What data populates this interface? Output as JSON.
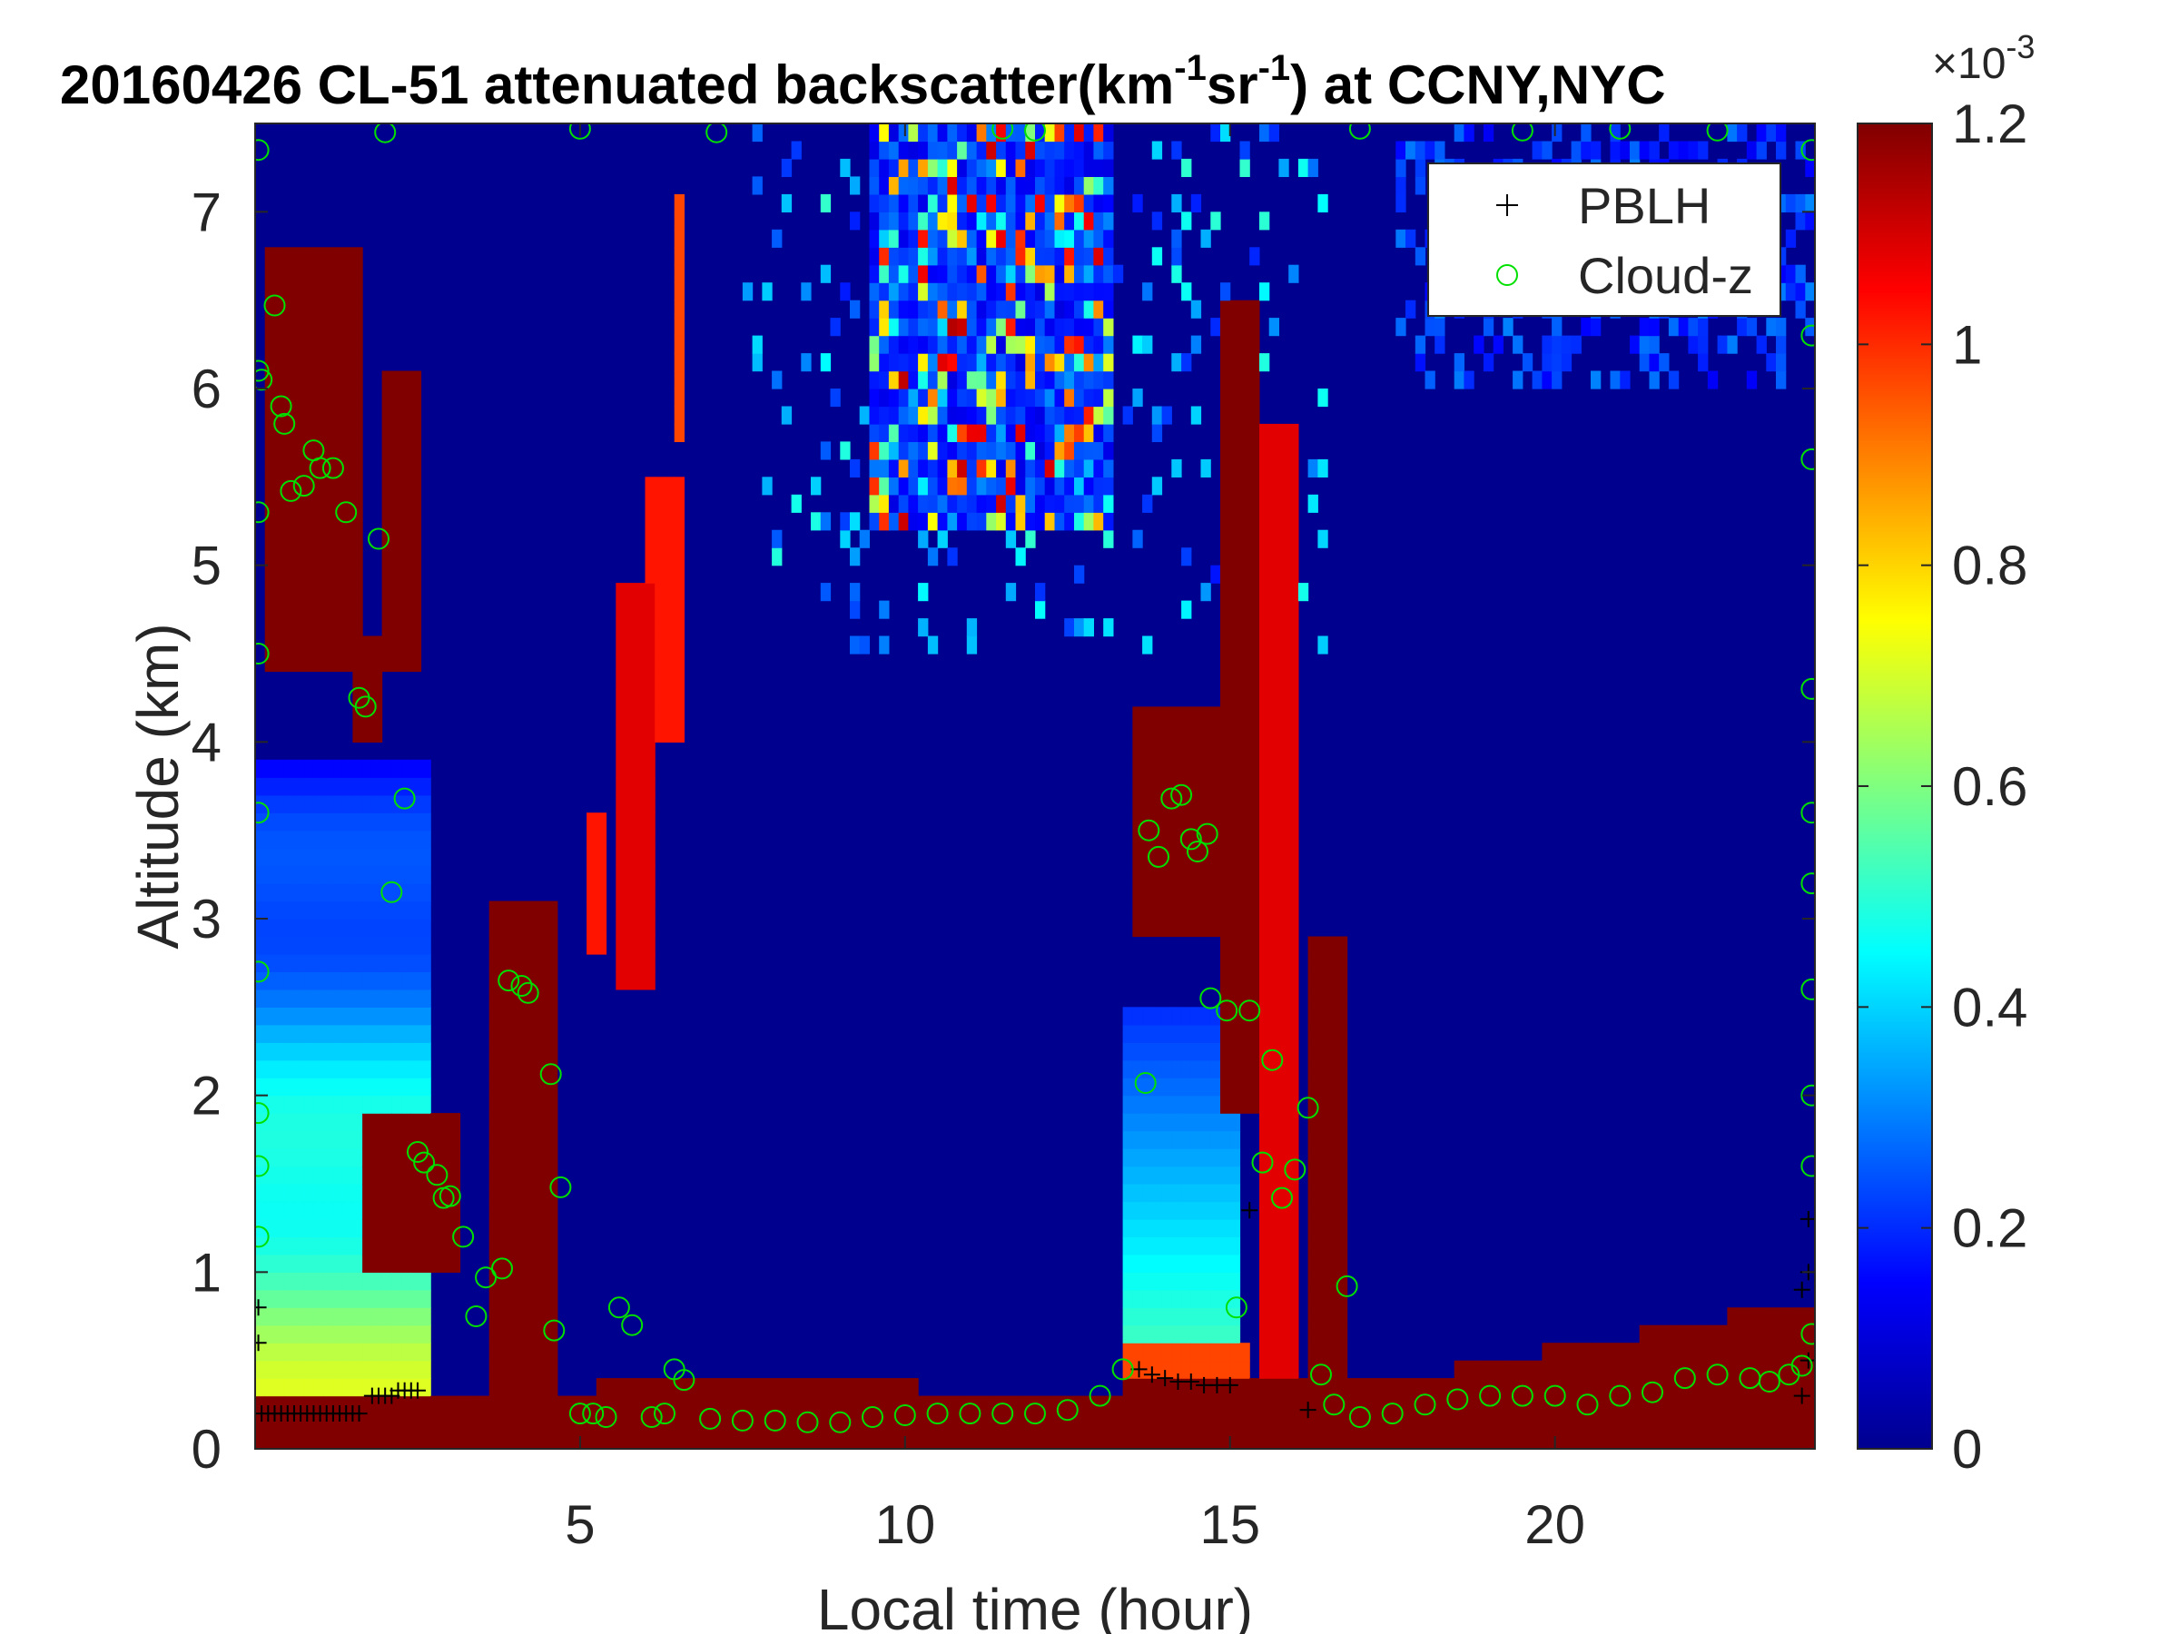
{
  "chart_data": {
    "type": "heatmap",
    "title": "20160426  CL-51 attenuated backscatter(km",
    "title_sup1": "-1",
    "title_mid": "sr",
    "title_sup2": "-1",
    "title_end": ") at CCNY,NYC",
    "xlabel": "Local time (hour)",
    "ylabel": "Altitude (km)",
    "xlim": [
      0,
      24
    ],
    "ylim": [
      0,
      7.5
    ],
    "xticks": [
      5,
      10,
      15,
      20
    ],
    "yticks": [
      0,
      1,
      2,
      3,
      4,
      5,
      6,
      7
    ],
    "colorbar": {
      "range": [
        0,
        0.0012
      ],
      "ticks": [
        0,
        0.2,
        0.4,
        0.6,
        0.8,
        1,
        1.2
      ],
      "tick_labels": [
        "0",
        "0.2",
        "0.4",
        "0.6",
        "0.8",
        "1",
        "1.2"
      ],
      "exponent_base": "10",
      "exponent_power": "-3",
      "exponent_prefix": "×",
      "colormap": "jet"
    },
    "legend": {
      "position": "top-right",
      "entries": [
        {
          "label": "PBLH",
          "marker": "+",
          "color": "#000000"
        },
        {
          "label": "Cloud-z",
          "marker": "o",
          "color": "#00e000"
        }
      ]
    },
    "series": [
      {
        "name": "PBLH",
        "marker": "+",
        "points": [
          [
            0.1,
            0.2
          ],
          [
            0.2,
            0.2
          ],
          [
            0.3,
            0.2
          ],
          [
            0.4,
            0.2
          ],
          [
            0.5,
            0.2
          ],
          [
            0.6,
            0.2
          ],
          [
            0.7,
            0.2
          ],
          [
            0.8,
            0.2
          ],
          [
            0.9,
            0.2
          ],
          [
            1.0,
            0.2
          ],
          [
            1.1,
            0.2
          ],
          [
            1.2,
            0.2
          ],
          [
            1.3,
            0.2
          ],
          [
            1.4,
            0.2
          ],
          [
            1.5,
            0.2
          ],
          [
            1.6,
            0.2
          ],
          [
            1.8,
            0.3
          ],
          [
            1.9,
            0.3
          ],
          [
            2.0,
            0.3
          ],
          [
            2.1,
            0.3
          ],
          [
            2.2,
            0.33
          ],
          [
            2.3,
            0.33
          ],
          [
            2.4,
            0.33
          ],
          [
            2.5,
            0.33
          ],
          [
            13.6,
            0.45
          ],
          [
            13.8,
            0.42
          ],
          [
            14.0,
            0.4
          ],
          [
            14.2,
            0.38
          ],
          [
            14.4,
            0.38
          ],
          [
            14.6,
            0.36
          ],
          [
            14.8,
            0.36
          ],
          [
            15.0,
            0.36
          ],
          [
            15.3,
            1.35
          ],
          [
            16.2,
            0.22
          ],
          [
            0.05,
            0.6
          ],
          [
            0.05,
            0.8
          ],
          [
            23.8,
            0.9
          ],
          [
            23.9,
            1.0
          ],
          [
            23.9,
            1.3
          ],
          [
            23.8,
            0.3
          ],
          [
            23.9,
            0.5
          ]
        ]
      },
      {
        "name": "Cloud-z",
        "marker": "o",
        "points": [
          [
            0.1,
            6.05
          ],
          [
            0.3,
            6.47
          ],
          [
            0.4,
            5.9
          ],
          [
            0.45,
            5.8
          ],
          [
            0.55,
            5.42
          ],
          [
            0.75,
            5.45
          ],
          [
            0.9,
            5.65
          ],
          [
            1.0,
            5.55
          ],
          [
            1.2,
            5.55
          ],
          [
            1.4,
            5.3
          ],
          [
            1.6,
            4.25
          ],
          [
            1.7,
            4.2
          ],
          [
            1.9,
            5.15
          ],
          [
            2.1,
            3.15
          ],
          [
            2.3,
            3.68
          ],
          [
            2.5,
            1.68
          ],
          [
            2.6,
            1.62
          ],
          [
            2.8,
            1.55
          ],
          [
            2.9,
            1.42
          ],
          [
            3.0,
            1.43
          ],
          [
            3.2,
            1.2
          ],
          [
            3.4,
            0.75
          ],
          [
            3.55,
            0.97
          ],
          [
            3.8,
            1.02
          ],
          [
            3.9,
            2.65
          ],
          [
            4.1,
            2.62
          ],
          [
            4.2,
            2.58
          ],
          [
            4.55,
            2.12
          ],
          [
            4.6,
            0.67
          ],
          [
            4.7,
            1.48
          ],
          [
            5.0,
            0.2
          ],
          [
            5.2,
            0.2
          ],
          [
            5.4,
            0.18
          ],
          [
            5.6,
            0.8
          ],
          [
            5.8,
            0.7
          ],
          [
            6.1,
            0.18
          ],
          [
            6.3,
            0.2
          ],
          [
            6.45,
            0.45
          ],
          [
            6.6,
            0.39
          ],
          [
            7.0,
            0.17
          ],
          [
            7.5,
            0.16
          ],
          [
            8.0,
            0.16
          ],
          [
            8.5,
            0.15
          ],
          [
            9.0,
            0.15
          ],
          [
            9.5,
            0.18
          ],
          [
            10.0,
            0.19
          ],
          [
            10.5,
            0.2
          ],
          [
            11.0,
            0.2
          ],
          [
            11.5,
            0.2
          ],
          [
            12.0,
            0.2
          ],
          [
            12.5,
            0.22
          ],
          [
            13.0,
            0.3
          ],
          [
            13.35,
            0.45
          ],
          [
            13.7,
            2.07
          ],
          [
            13.75,
            3.5
          ],
          [
            13.9,
            3.35
          ],
          [
            14.1,
            3.68
          ],
          [
            14.25,
            3.7
          ],
          [
            14.4,
            3.45
          ],
          [
            14.5,
            3.38
          ],
          [
            14.65,
            3.48
          ],
          [
            14.7,
            2.55
          ],
          [
            14.95,
            2.48
          ],
          [
            15.1,
            0.8
          ],
          [
            15.3,
            2.48
          ],
          [
            15.5,
            1.62
          ],
          [
            15.65,
            2.2
          ],
          [
            15.8,
            1.42
          ],
          [
            16.0,
            1.58
          ],
          [
            16.2,
            1.93
          ],
          [
            16.4,
            0.42
          ],
          [
            16.6,
            0.25
          ],
          [
            16.8,
            0.92
          ],
          [
            17.0,
            0.18
          ],
          [
            17.5,
            0.2
          ],
          [
            18.0,
            0.25
          ],
          [
            18.5,
            0.28
          ],
          [
            19.0,
            0.3
          ],
          [
            19.5,
            0.3
          ],
          [
            20.0,
            0.3
          ],
          [
            20.5,
            0.25
          ],
          [
            21.0,
            0.3
          ],
          [
            21.5,
            0.32
          ],
          [
            22.0,
            0.4
          ],
          [
            22.5,
            0.42
          ],
          [
            23.0,
            0.4
          ],
          [
            23.3,
            0.38
          ],
          [
            23.6,
            0.42
          ],
          [
            23.8,
            0.47
          ],
          [
            23.95,
            0.65
          ],
          [
            0.05,
            7.35
          ],
          [
            0.05,
            6.1
          ],
          [
            0.05,
            5.3
          ],
          [
            0.05,
            4.5
          ],
          [
            0.05,
            3.6
          ],
          [
            0.05,
            2.7
          ],
          [
            0.05,
            1.9
          ],
          [
            0.05,
            1.6
          ],
          [
            0.05,
            1.2
          ],
          [
            23.95,
            7.35
          ],
          [
            23.95,
            6.3
          ],
          [
            23.95,
            5.6
          ],
          [
            23.95,
            4.3
          ],
          [
            23.95,
            3.6
          ],
          [
            23.95,
            3.2
          ],
          [
            23.95,
            2.6
          ],
          [
            23.95,
            2.0
          ],
          [
            23.95,
            1.6
          ],
          [
            2.0,
            7.45
          ],
          [
            5.0,
            7.47
          ],
          [
            7.1,
            7.45
          ],
          [
            11.5,
            7.47
          ],
          [
            12.0,
            7.46
          ],
          [
            17.0,
            7.47
          ],
          [
            19.5,
            7.46
          ],
          [
            21.0,
            7.47
          ],
          [
            22.5,
            7.46
          ]
        ]
      }
    ]
  }
}
